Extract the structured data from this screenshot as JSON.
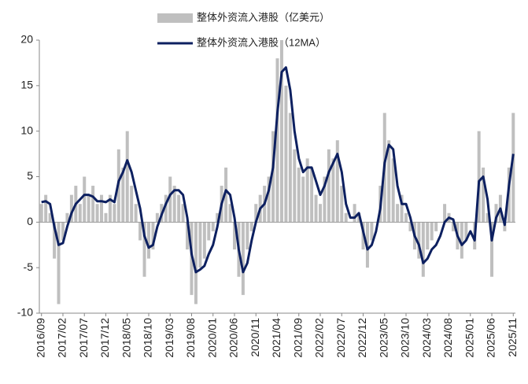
{
  "chart_data": {
    "type": "bar_line",
    "categories": [
      "2016/09",
      null,
      null,
      null,
      null,
      "2017/02",
      null,
      null,
      null,
      null,
      "2017/07",
      null,
      null,
      null,
      null,
      "2017/12",
      null,
      null,
      null,
      null,
      "2018/05",
      null,
      null,
      null,
      null,
      "2018/10",
      null,
      null,
      null,
      null,
      "2019/03",
      null,
      null,
      null,
      null,
      "2019/08",
      null,
      null,
      null,
      null,
      "2020/01",
      null,
      null,
      null,
      null,
      "2020/06",
      null,
      null,
      null,
      null,
      "2020/11",
      null,
      null,
      null,
      null,
      "2021/04",
      null,
      null,
      null,
      null,
      "2021/09",
      null,
      null,
      null,
      null,
      "2022/02",
      null,
      null,
      null,
      null,
      "2022/07",
      null,
      null,
      null,
      null,
      "2022/12",
      null,
      null,
      null,
      null,
      "2023/05",
      null,
      null,
      null,
      null,
      "2023/10",
      null,
      null,
      null,
      null,
      "2024/03",
      null,
      null,
      null,
      null,
      "2024/08",
      null,
      null,
      null,
      null,
      "2025/01",
      null,
      null,
      null,
      null,
      "2025/06",
      null,
      null,
      null,
      null,
      "2025/11"
    ],
    "series": [
      {
        "name": "整体外资流入港股（亿美元）",
        "color": "#bfbfbf",
        "kind": "bar",
        "values": [
          2,
          3,
          1,
          -4,
          -9,
          -2,
          1,
          3,
          4,
          2,
          5,
          3,
          4,
          2,
          3,
          1,
          3,
          2,
          8,
          6,
          10,
          4,
          2,
          -2,
          -6,
          -4,
          -3,
          1,
          2,
          3,
          5,
          4,
          3,
          2,
          -3,
          -8,
          -9,
          -5,
          -4,
          -2,
          -1,
          1,
          4,
          6,
          2,
          -3,
          -6,
          -8,
          -3,
          -1,
          2,
          3,
          4,
          5,
          10,
          18,
          20,
          15,
          12,
          8,
          6,
          5,
          7,
          6,
          3,
          2,
          5,
          8,
          7,
          9,
          4,
          1,
          0,
          2,
          1,
          -3,
          -5,
          -2,
          0,
          4,
          12,
          9,
          7,
          2,
          3,
          1,
          -1,
          -3,
          -4,
          -6,
          -3,
          -2,
          -1,
          0,
          2,
          1,
          -1,
          -3,
          -4,
          -2,
          0,
          -3,
          10,
          6,
          1,
          -6,
          2,
          3,
          -1,
          6,
          12
        ]
      },
      {
        "name": "整体外资流入港股（12MA）",
        "color": "#0d2060",
        "kind": "line",
        "values": [
          2.2,
          2.3,
          2.0,
          -0.5,
          -2.5,
          -2.3,
          -0.5,
          1.0,
          2.0,
          2.5,
          3.0,
          3.0,
          2.8,
          2.3,
          2.3,
          2.2,
          2.5,
          2.2,
          4.5,
          5.5,
          6.8,
          5.5,
          3.5,
          1.5,
          -1.5,
          -2.8,
          -2.5,
          -0.5,
          0.8,
          2.0,
          3.0,
          3.5,
          3.5,
          3.0,
          0.5,
          -3.5,
          -5.5,
          -5.2,
          -4.8,
          -3.5,
          -2.5,
          -0.5,
          2.0,
          3.5,
          3.0,
          0.5,
          -3.0,
          -5.5,
          -4.5,
          -2.0,
          0.0,
          1.5,
          2.0,
          3.5,
          6.0,
          12.0,
          16.5,
          17.0,
          14.5,
          10.0,
          7.0,
          5.5,
          6.0,
          6.0,
          4.5,
          3.0,
          4.0,
          5.5,
          6.5,
          7.5,
          5.5,
          2.0,
          0.5,
          0.5,
          1.0,
          -1.0,
          -3.0,
          -2.5,
          -1.0,
          1.5,
          6.5,
          8.5,
          8.0,
          4.0,
          2.0,
          2.0,
          0.5,
          -1.5,
          -2.5,
          -4.5,
          -4.0,
          -3.0,
          -2.5,
          -1.5,
          0.0,
          0.5,
          0.3,
          -1.5,
          -2.5,
          -2.0,
          -1.0,
          -2.0,
          4.5,
          5.0,
          2.5,
          -2.0,
          0.5,
          1.5,
          -0.3,
          4.0,
          7.5
        ]
      }
    ],
    "ylim": [
      -10,
      20
    ],
    "yticks": [
      -10,
      -5,
      0,
      5,
      10,
      15,
      20
    ]
  }
}
